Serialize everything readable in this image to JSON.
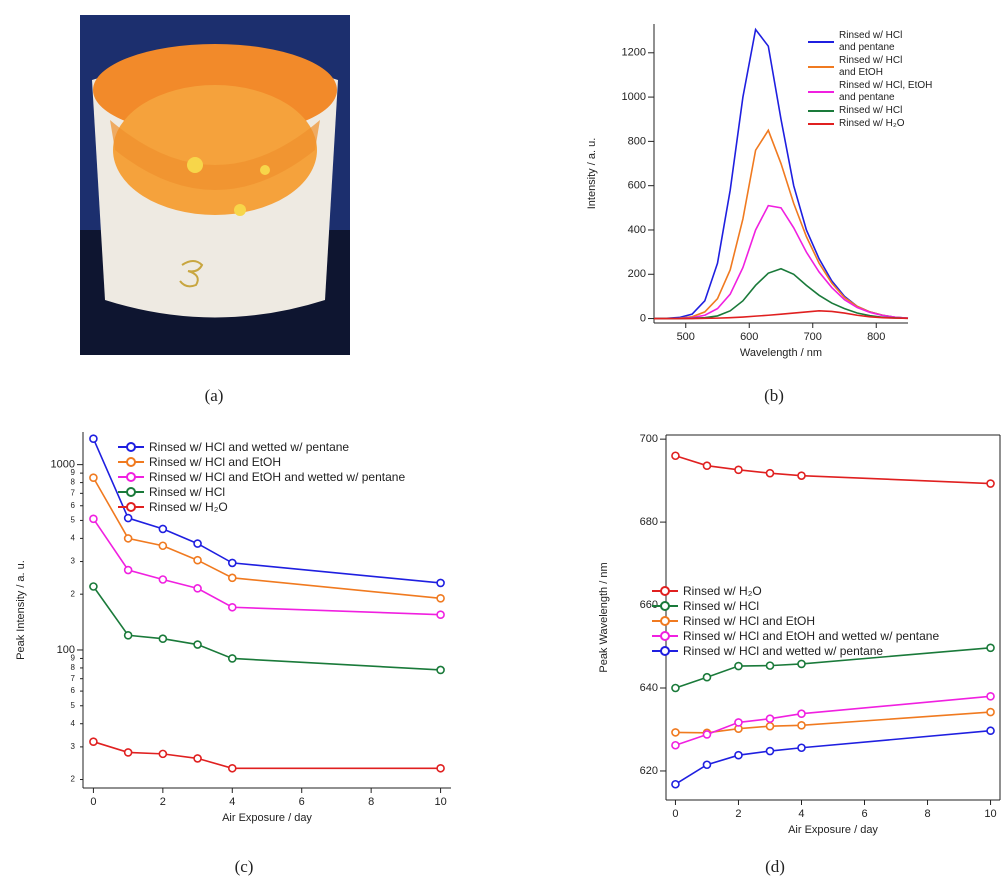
{
  "photo": {
    "caption": "(a)"
  },
  "chart_data": [
    {
      "type": "line",
      "caption": "(b)",
      "xlabel": "Wavelength / nm",
      "ylabel": "Intensity / a. u.",
      "x": [
        450,
        470,
        490,
        510,
        530,
        550,
        570,
        590,
        610,
        630,
        650,
        670,
        690,
        710,
        730,
        750,
        770,
        790,
        810,
        830,
        850
      ],
      "xlim": [
        450,
        850
      ],
      "xticks": [
        500,
        600,
        700,
        800
      ],
      "ylim": [
        -20,
        1330
      ],
      "yticks": [
        0,
        200,
        400,
        600,
        800,
        1000,
        1200
      ],
      "log_y": false,
      "markers": false,
      "legend": "upper right",
      "series": [
        {
          "name": "Rinsed w/ HCl\nand pentane",
          "color": "#1f1fe0",
          "values": [
            0,
            1,
            5,
            20,
            80,
            250,
            580,
            1000,
            1305,
            1230,
            900,
            600,
            400,
            270,
            170,
            100,
            55,
            30,
            15,
            6,
            2
          ]
        },
        {
          "name": "Rinsed w/ HCl\nand EtOH",
          "color": "#f07a20",
          "values": [
            0,
            0,
            2,
            8,
            30,
            90,
            220,
            450,
            760,
            850,
            700,
            520,
            370,
            250,
            160,
            95,
            55,
            30,
            15,
            6,
            2
          ]
        },
        {
          "name": "Rinsed w/ HCl, EtOH\nand pentane",
          "color": "#f020e0",
          "values": [
            0,
            0,
            1,
            4,
            15,
            45,
            110,
            230,
            400,
            510,
            500,
            410,
            300,
            210,
            140,
            85,
            50,
            28,
            14,
            6,
            2
          ]
        },
        {
          "name": "Rinsed w/ HCl",
          "color": "#1a7a3a",
          "values": [
            0,
            0,
            0,
            1,
            4,
            12,
            35,
            80,
            150,
            205,
            225,
            200,
            150,
            105,
            70,
            45,
            25,
            13,
            6,
            3,
            1
          ]
        },
        {
          "name": "Rinsed w/ H₂O",
          "color": "#e02020",
          "values": [
            0,
            0,
            0,
            0,
            1,
            2,
            4,
            7,
            11,
            15,
            20,
            25,
            30,
            35,
            32,
            25,
            15,
            8,
            4,
            2,
            1
          ]
        }
      ]
    },
    {
      "type": "line",
      "caption": "(c)",
      "xlabel": "Air Exposure / day",
      "ylabel": "Peak Intensity / a. u.",
      "x": [
        0,
        1,
        2,
        3,
        4,
        10
      ],
      "xlim": [
        -0.3,
        10.3
      ],
      "xticks": [
        0,
        2,
        4,
        6,
        8,
        10
      ],
      "ylim": [
        18,
        1500
      ],
      "log_y": true,
      "markers": true,
      "legend": "upper right",
      "yticks": [
        {
          "value": 20,
          "label": "2"
        },
        {
          "value": 30,
          "label": "3"
        },
        {
          "value": 40,
          "label": "4"
        },
        {
          "value": 50,
          "label": "5"
        },
        {
          "value": 60,
          "label": "6"
        },
        {
          "value": 70,
          "label": "7"
        },
        {
          "value": 80,
          "label": "8"
        },
        {
          "value": 90,
          "label": "9"
        },
        100,
        {
          "value": 200,
          "label": "2"
        },
        {
          "value": 300,
          "label": "3"
        },
        {
          "value": 400,
          "label": "4"
        },
        {
          "value": 500,
          "label": "5"
        },
        {
          "value": 600,
          "label": "6"
        },
        {
          "value": 700,
          "label": "7"
        },
        {
          "value": 800,
          "label": "8"
        },
        {
          "value": 900,
          "label": "9"
        },
        1000
      ],
      "series": [
        {
          "name": "Rinsed w/ HCl and wetted w/ pentane",
          "color": "#1f1fe0",
          "values": [
            1380,
            515,
            450,
            375,
            295,
            230
          ]
        },
        {
          "name": "Rinsed w/ HCl and EtOH",
          "color": "#f07a20",
          "values": [
            850,
            400,
            365,
            305,
            245,
            190
          ]
        },
        {
          "name": "Rinsed w/ HCl and EtOH and wetted w/ pentane",
          "color": "#f020e0",
          "values": [
            510,
            270,
            240,
            215,
            170,
            155
          ]
        },
        {
          "name": "Rinsed w/ HCl",
          "color": "#1a7a3a",
          "values": [
            220,
            120,
            115,
            107,
            90,
            78
          ]
        },
        {
          "name": "Rinsed w/ H₂O",
          "color": "#e02020",
          "values": [
            32,
            28,
            27.5,
            26,
            23,
            23
          ]
        }
      ]
    },
    {
      "type": "line",
      "caption": "(d)",
      "xlabel": "Air Exposure / day",
      "ylabel": "Peak Wavelength / nm",
      "x": [
        0,
        1,
        2,
        3,
        4,
        10
      ],
      "xlim": [
        -0.3,
        10.3
      ],
      "xticks": [
        0,
        2,
        4,
        6,
        8,
        10
      ],
      "ylim": [
        613,
        701
      ],
      "yticks": [
        620,
        640,
        660,
        680,
        700
      ],
      "log_y": false,
      "markers": true,
      "legend": "center left",
      "series": [
        {
          "name": "Rinsed w/ H₂O",
          "color": "#e02020",
          "values": [
            696,
            693.6,
            692.6,
            691.8,
            691.2,
            689.3
          ]
        },
        {
          "name": "Rinsed w/ HCl",
          "color": "#1a7a3a",
          "values": [
            640,
            642.6,
            645.3,
            645.4,
            645.8,
            649.7
          ]
        },
        {
          "name": "Rinsed w/ HCl and EtOH",
          "color": "#f07a20",
          "values": [
            629.3,
            629.2,
            630.2,
            630.8,
            631.0,
            634.2
          ]
        },
        {
          "name": "Rinsed w/ HCl and EtOH and wetted w/ pentane",
          "color": "#f020e0",
          "values": [
            626.2,
            628.8,
            631.7,
            632.6,
            633.8,
            638
          ]
        },
        {
          "name": "Rinsed w/ HCl and wetted w/ pentane",
          "color": "#1f1fe0",
          "values": [
            616.8,
            621.5,
            623.8,
            624.8,
            625.6,
            629.7
          ]
        }
      ]
    }
  ]
}
